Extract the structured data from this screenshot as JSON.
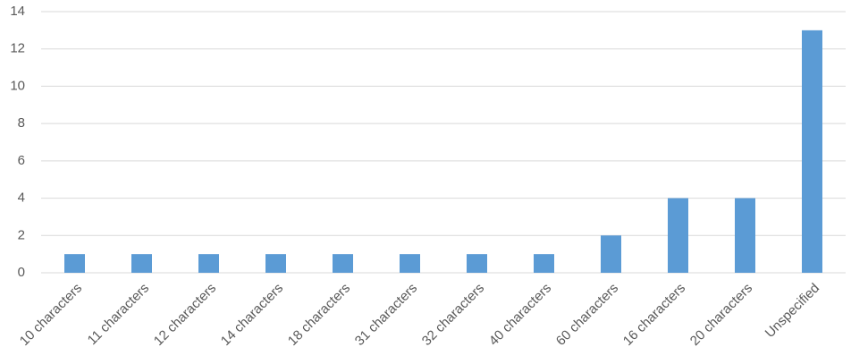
{
  "chart_data": {
    "type": "bar",
    "categories": [
      "10 characters",
      "11 characters",
      "12 characters",
      "14 characters",
      "18 characters",
      "31 characters",
      "32 characters",
      "40 characters",
      "60 characters",
      "16 characters",
      "20 characters",
      "Unspecified"
    ],
    "values": [
      1,
      1,
      1,
      1,
      1,
      1,
      1,
      1,
      2,
      4,
      4,
      13
    ],
    "color": "#5b9bd5",
    "ylim": [
      0,
      14
    ],
    "yticks": [
      0,
      2,
      4,
      6,
      8,
      10,
      12,
      14
    ],
    "grid": true
  }
}
